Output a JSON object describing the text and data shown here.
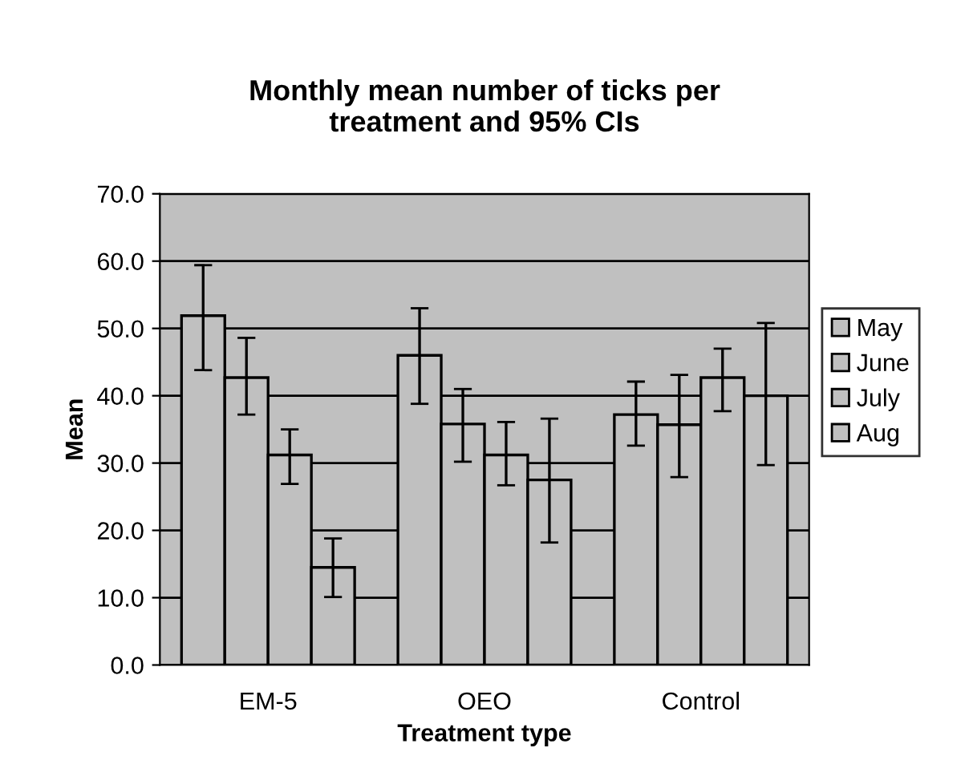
{
  "chart_data": {
    "type": "bar",
    "title": "Monthly mean number of ticks per\ntreatment and 95% CIs",
    "xlabel": "Treatment type",
    "ylabel": "Mean",
    "categories": [
      "EM-5",
      "OEO",
      "Control"
    ],
    "series": [
      {
        "name": "May",
        "color": "#c0c0c0",
        "values": [
          51.9,
          46.0,
          37.2
        ],
        "errors": [
          [
            43.8,
            59.4
          ],
          [
            38.8,
            53.0
          ],
          [
            32.6,
            42.1
          ]
        ]
      },
      {
        "name": "June",
        "color": "#c0c0c0",
        "values": [
          42.7,
          35.8,
          35.7
        ],
        "errors": [
          [
            37.2,
            48.6
          ],
          [
            30.2,
            41.0
          ],
          [
            27.9,
            43.1
          ]
        ]
      },
      {
        "name": "July",
        "color": "#c0c0c0",
        "values": [
          31.2,
          31.2,
          42.7
        ],
        "errors": [
          [
            26.9,
            35.0
          ],
          [
            26.7,
            36.1
          ],
          [
            37.7,
            47.0
          ]
        ]
      },
      {
        "name": "Aug",
        "color": "#c0c0c0",
        "values": [
          14.5,
          27.5,
          40.0
        ],
        "errors": [
          [
            10.1,
            18.8
          ],
          [
            18.2,
            36.6
          ],
          [
            29.7,
            50.8
          ]
        ]
      }
    ],
    "ylim": [
      0,
      70
    ],
    "yticks": [
      {
        "value": 0,
        "label": "0.0"
      },
      {
        "value": 10,
        "label": "10.0"
      },
      {
        "value": 20,
        "label": "20.0"
      },
      {
        "value": 30,
        "label": "30.0"
      },
      {
        "value": 40,
        "label": "40.0"
      },
      {
        "value": 50,
        "label": "50.0"
      },
      {
        "value": 60,
        "label": "60.0"
      },
      {
        "value": 70,
        "label": "70.0"
      }
    ],
    "grid": "y",
    "legend": "right"
  }
}
